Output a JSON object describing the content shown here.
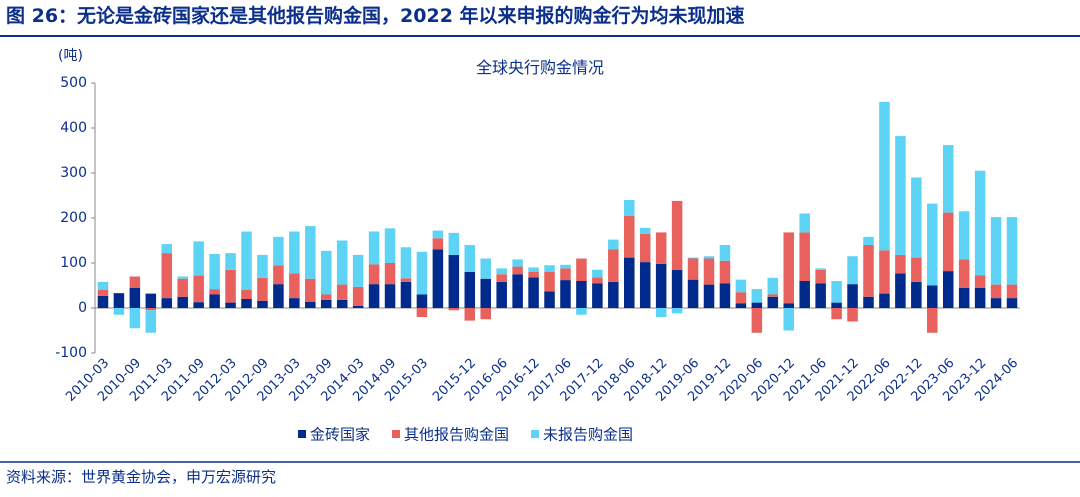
{
  "header": {
    "title": "图 26：无论是金砖国家还是其他报告购金国，2022 年以来申报的购金行为均未现加速"
  },
  "chart_data": {
    "type": "stacked_bar",
    "title": "全球央行购金情况",
    "y_unit": "(吨)",
    "categories": [
      "2010-03",
      null,
      "2010-09",
      null,
      "2011-03",
      null,
      "2011-09",
      null,
      "2012-03",
      null,
      "2012-09",
      null,
      "2013-03",
      null,
      "2013-09",
      null,
      "2014-03",
      null,
      "2014-09",
      null,
      "2015-03",
      null,
      null,
      "2015-12",
      null,
      "2016-06",
      null,
      "2016-12",
      null,
      "2017-06",
      null,
      "2017-12",
      null,
      "2018-06",
      null,
      "2018-12",
      null,
      "2019-06",
      null,
      "2019-12",
      null,
      "2020-06",
      null,
      "2020-12",
      null,
      "2021-06",
      null,
      "2021-12",
      null,
      "2022-06",
      null,
      "2022-12",
      null,
      "2023-06",
      null,
      "2023-12",
      null,
      "2024-06"
    ],
    "series": [
      {
        "name": "金砖国家",
        "color": "#002a8c",
        "values": [
          27,
          33,
          45,
          32,
          22,
          25,
          13,
          30,
          12,
          20,
          16,
          53,
          22,
          14,
          18,
          18,
          5,
          53,
          53,
          58,
          30,
          130,
          118,
          80,
          65,
          58,
          75,
          68,
          37,
          62,
          60,
          55,
          58,
          112,
          102,
          98,
          85,
          63,
          52,
          55,
          10,
          12,
          25,
          10,
          60,
          55,
          12,
          53,
          25,
          32,
          77,
          58,
          50,
          82,
          45,
          45,
          22,
          22
        ]
      },
      {
        "name": "其他报告购金国",
        "color": "#e8615c",
        "values": [
          13,
          0,
          25,
          -5,
          100,
          40,
          59,
          12,
          73,
          20,
          51,
          42,
          55,
          51,
          12,
          34,
          42,
          44,
          47,
          8,
          -20,
          25,
          -5,
          -28,
          -25,
          17,
          17,
          12,
          43,
          26,
          50,
          13,
          72,
          93,
          63,
          70,
          153,
          47,
          58,
          50,
          25,
          -55,
          5,
          158,
          108,
          30,
          -25,
          -30,
          115,
          96,
          41,
          54,
          -55,
          130,
          63,
          28,
          30,
          30
        ]
      },
      {
        "name": "未报告购金国",
        "color": "#5dd4f5",
        "values": [
          18,
          -15,
          -45,
          -50,
          20,
          5,
          76,
          78,
          37,
          130,
          51,
          63,
          93,
          117,
          97,
          98,
          71,
          73,
          77,
          69,
          95,
          17,
          49,
          60,
          45,
          13,
          16,
          10,
          15,
          8,
          -15,
          17,
          22,
          35,
          13,
          -20,
          -12,
          2,
          5,
          35,
          28,
          30,
          37,
          -50,
          42,
          3,
          48,
          62,
          18,
          330,
          264,
          178,
          182,
          150,
          107,
          232,
          150,
          150
        ]
      }
    ],
    "ylim": [
      -100,
      500
    ],
    "yticks": [
      -100,
      0,
      100,
      200,
      300,
      400,
      500
    ],
    "legend": "bottom"
  },
  "footer": {
    "source": "资料来源：世界黄金协会，申万宏源研究"
  }
}
